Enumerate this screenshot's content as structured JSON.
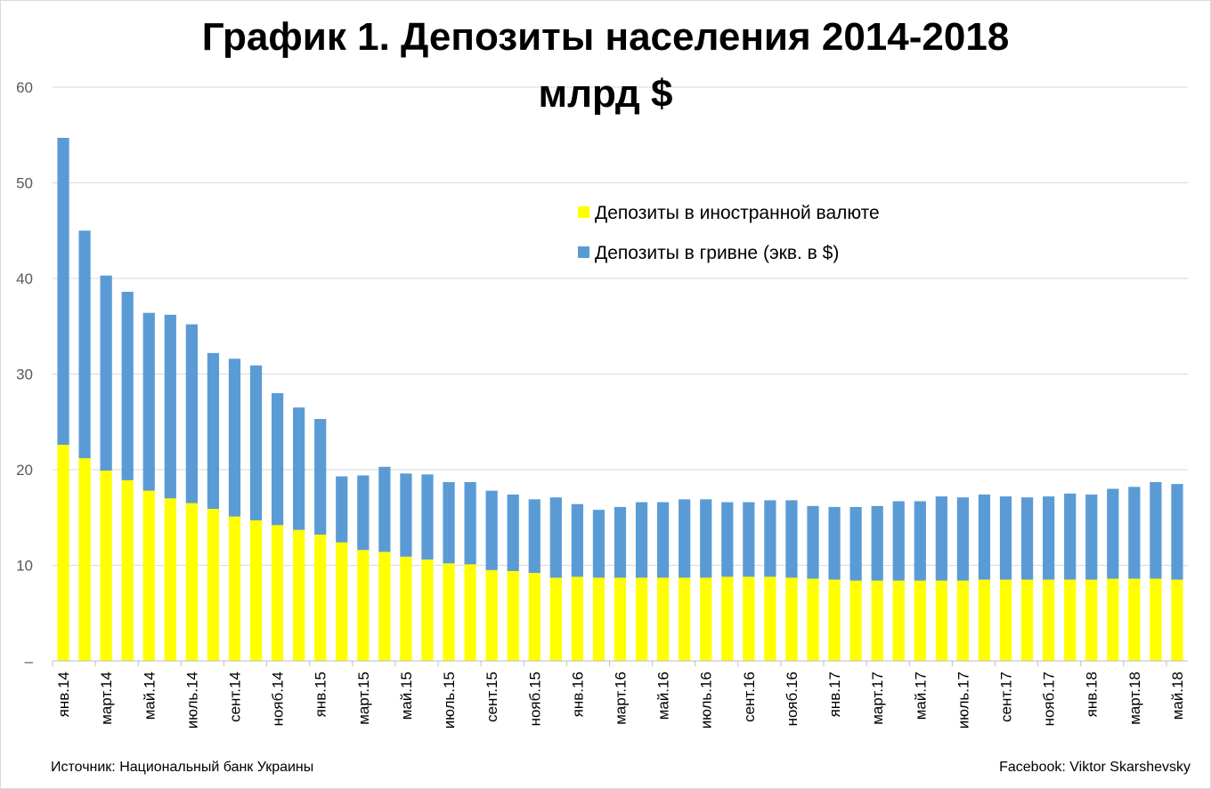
{
  "chart_data": {
    "type": "bar",
    "stacked": true,
    "title": "График 1. Депозиты населения 2014-2018",
    "subtitle": "млрд $",
    "xlabel": "",
    "ylabel": "",
    "ylim": [
      0,
      60
    ],
    "yticks": [
      {
        "value": 0,
        "label": "–"
      },
      {
        "value": 10,
        "label": "10"
      },
      {
        "value": 20,
        "label": "20"
      },
      {
        "value": 30,
        "label": "30"
      },
      {
        "value": 40,
        "label": "40"
      },
      {
        "value": 50,
        "label": "50"
      },
      {
        "value": 60,
        "label": "60"
      }
    ],
    "grid": true,
    "legend_position": "top-right",
    "categories": [
      "янв.14",
      "февр.14",
      "март.14",
      "апр.14",
      "май.14",
      "июнь.14",
      "июль.14",
      "авг.14",
      "сент.14",
      "окт.14",
      "нояб.14",
      "дек.14",
      "янв.15",
      "февр.15",
      "март.15",
      "апр.15",
      "май.15",
      "июнь.15",
      "июль.15",
      "авг.15",
      "сент.15",
      "окт.15",
      "нояб.15",
      "дек.15",
      "янв.16",
      "февр.16",
      "март.16",
      "апр.16",
      "май.16",
      "июнь.16",
      "июль.16",
      "авг.16",
      "сент.16",
      "окт.16",
      "нояб.16",
      "дек.16",
      "янв.17",
      "февр.17",
      "март.17",
      "апр.17",
      "май.17",
      "июнь.17",
      "июль.17",
      "авг.17",
      "сент.17",
      "окт.17",
      "нояб.17",
      "дек.17",
      "янв.18",
      "февр.18",
      "март.18",
      "апр.18",
      "май.18"
    ],
    "visible_tick_labels": [
      "янв.14",
      "март.14",
      "май.14",
      "июль.14",
      "сент.14",
      "нояб.14",
      "янв.15",
      "март.15",
      "май.15",
      "июль.15",
      "сент.15",
      "нояб.15",
      "янв.16",
      "март.16",
      "май.16",
      "июль.16",
      "сент.16",
      "нояб.16",
      "янв.17",
      "март.17",
      "май.17",
      "июль.17",
      "сент.17",
      "нояб.17",
      "янв.18",
      "март.18",
      "май.18"
    ],
    "series": [
      {
        "name": "Депозиты в иностранной валюте",
        "color": "#ffff00",
        "values": [
          22.6,
          21.2,
          19.9,
          18.9,
          17.8,
          17.0,
          16.5,
          15.9,
          15.1,
          14.7,
          14.2,
          13.7,
          13.2,
          12.4,
          11.6,
          11.4,
          10.9,
          10.6,
          10.2,
          10.1,
          9.5,
          9.4,
          9.2,
          8.7,
          8.8,
          8.7,
          8.7,
          8.7,
          8.7,
          8.7,
          8.7,
          8.8,
          8.8,
          8.8,
          8.7,
          8.6,
          8.5,
          8.4,
          8.4,
          8.4,
          8.4,
          8.4,
          8.4,
          8.5,
          8.5,
          8.5,
          8.5,
          8.5,
          8.5,
          8.6,
          8.6,
          8.6,
          8.5
        ]
      },
      {
        "name": "Депозиты в гривне (экв. в $)",
        "color": "#5b9bd5",
        "values": [
          32.1,
          23.8,
          20.4,
          19.7,
          18.6,
          19.2,
          18.7,
          16.3,
          16.5,
          16.2,
          13.8,
          12.8,
          12.1,
          6.9,
          7.8,
          8.9,
          8.7,
          8.9,
          8.5,
          8.6,
          8.3,
          8.0,
          7.7,
          8.4,
          7.6,
          7.1,
          7.4,
          7.9,
          7.9,
          8.2,
          8.2,
          7.8,
          7.8,
          8.0,
          8.1,
          7.6,
          7.6,
          7.7,
          7.8,
          8.3,
          8.3,
          8.8,
          8.7,
          8.9,
          8.7,
          8.6,
          8.7,
          9.0,
          8.9,
          9.4,
          9.6,
          10.1,
          10.0
        ]
      }
    ]
  },
  "footer": {
    "source": "Источник: Национальный банк Украины",
    "credit": "Facebook: Viktor Skarshevsky"
  }
}
